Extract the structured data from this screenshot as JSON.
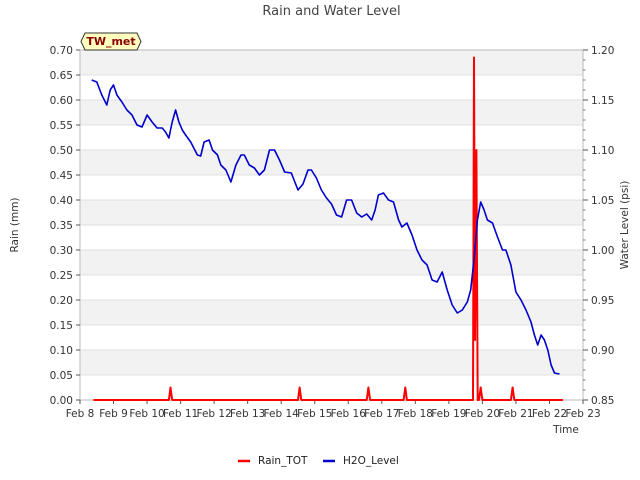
{
  "chart_data": {
    "type": "line",
    "title": "Rain and Water Level",
    "xlabel": "Time",
    "ylabel_left": "Rain (mm)",
    "ylabel_right": "Water Level (psi)",
    "badge": "TW_met",
    "x_ticks": [
      "Feb 8",
      "Feb 9",
      "Feb 10",
      "Feb 11",
      "Feb 12",
      "Feb 13",
      "Feb 14",
      "Feb 15",
      "Feb 16",
      "Feb 17",
      "Feb 18",
      "Feb 19",
      "Feb 20",
      "Feb 21",
      "Feb 22",
      "Feb 23"
    ],
    "y_left_ticks": [
      "0.00",
      "0.05",
      "0.10",
      "0.15",
      "0.20",
      "0.25",
      "0.30",
      "0.35",
      "0.40",
      "0.45",
      "0.50",
      "0.55",
      "0.60",
      "0.65",
      "0.70"
    ],
    "y_right_ticks": [
      "0.85",
      "0.90",
      "0.95",
      "1.00",
      "1.05",
      "1.10",
      "1.15",
      "1.20"
    ],
    "ylim_left": [
      0,
      0.7
    ],
    "ylim_right": [
      0.85,
      1.2
    ],
    "xlim_days": [
      0,
      15
    ],
    "grid": "horizontal bands",
    "legend_position": "bottom",
    "series": [
      {
        "name": "Rain_TOT",
        "axis": "left",
        "color": "#ff0000",
        "x": [
          0.4,
          2.65,
          2.7,
          2.75,
          6.5,
          6.55,
          6.6,
          8.55,
          8.6,
          8.65,
          9.65,
          9.7,
          9.75,
          11.72,
          11.75,
          11.78,
          11.82,
          11.86,
          11.9,
          11.95,
          12.0,
          12.85,
          12.9,
          12.95,
          14.4
        ],
        "values": [
          0,
          0,
          0.025,
          0,
          0,
          0.025,
          0,
          0,
          0.025,
          0,
          0,
          0.025,
          0,
          0,
          0.685,
          0.12,
          0.5,
          0,
          0,
          0.025,
          0,
          0,
          0.025,
          0,
          0
        ]
      },
      {
        "name": "H2O_Level",
        "axis": "right",
        "color": "#0000cc",
        "x": [
          0.35,
          0.5,
          0.65,
          0.8,
          0.9,
          1.0,
          1.1,
          1.25,
          1.4,
          1.55,
          1.7,
          1.85,
          2.0,
          2.15,
          2.3,
          2.45,
          2.55,
          2.65,
          2.75,
          2.85,
          2.95,
          3.05,
          3.15,
          3.3,
          3.5,
          3.6,
          3.7,
          3.85,
          3.95,
          4.1,
          4.2,
          4.35,
          4.5,
          4.65,
          4.8,
          4.9,
          5.05,
          5.2,
          5.35,
          5.5,
          5.65,
          5.8,
          5.95,
          6.1,
          6.3,
          6.5,
          6.65,
          6.8,
          6.9,
          7.05,
          7.2,
          7.35,
          7.5,
          7.65,
          7.8,
          7.95,
          8.1,
          8.25,
          8.4,
          8.55,
          8.7,
          8.8,
          8.9,
          9.05,
          9.2,
          9.35,
          9.5,
          9.6,
          9.75,
          9.9,
          10.05,
          10.2,
          10.35,
          10.5,
          10.65,
          10.8,
          10.95,
          11.1,
          11.25,
          11.4,
          11.55,
          11.65,
          11.75,
          11.85,
          11.95,
          12.05,
          12.15,
          12.3,
          12.45,
          12.6,
          12.7,
          12.85,
          13.0,
          13.15,
          13.3,
          13.45,
          13.55,
          13.65,
          13.75,
          13.85,
          13.95,
          14.05,
          14.15,
          14.3
        ],
        "values": [
          1.17,
          1.168,
          1.155,
          1.145,
          1.16,
          1.165,
          1.155,
          1.148,
          1.14,
          1.135,
          1.125,
          1.123,
          1.135,
          1.128,
          1.122,
          1.122,
          1.118,
          1.112,
          1.128,
          1.14,
          1.128,
          1.12,
          1.115,
          1.108,
          1.095,
          1.094,
          1.108,
          1.11,
          1.1,
          1.095,
          1.085,
          1.08,
          1.068,
          1.085,
          1.095,
          1.095,
          1.085,
          1.082,
          1.075,
          1.08,
          1.1,
          1.1,
          1.09,
          1.078,
          1.077,
          1.06,
          1.066,
          1.08,
          1.08,
          1.072,
          1.06,
          1.052,
          1.046,
          1.035,
          1.033,
          1.05,
          1.05,
          1.037,
          1.033,
          1.036,
          1.03,
          1.04,
          1.055,
          1.057,
          1.05,
          1.048,
          1.03,
          1.023,
          1.027,
          1.015,
          1.0,
          0.99,
          0.985,
          0.97,
          0.968,
          0.978,
          0.96,
          0.945,
          0.937,
          0.94,
          0.948,
          0.96,
          0.99,
          1.03,
          1.048,
          1.04,
          1.03,
          1.027,
          1.013,
          1.0,
          1.0,
          0.985,
          0.958,
          0.95,
          0.94,
          0.928,
          0.915,
          0.905,
          0.915,
          0.91,
          0.9,
          0.885,
          0.877,
          0.876
        ]
      }
    ]
  }
}
